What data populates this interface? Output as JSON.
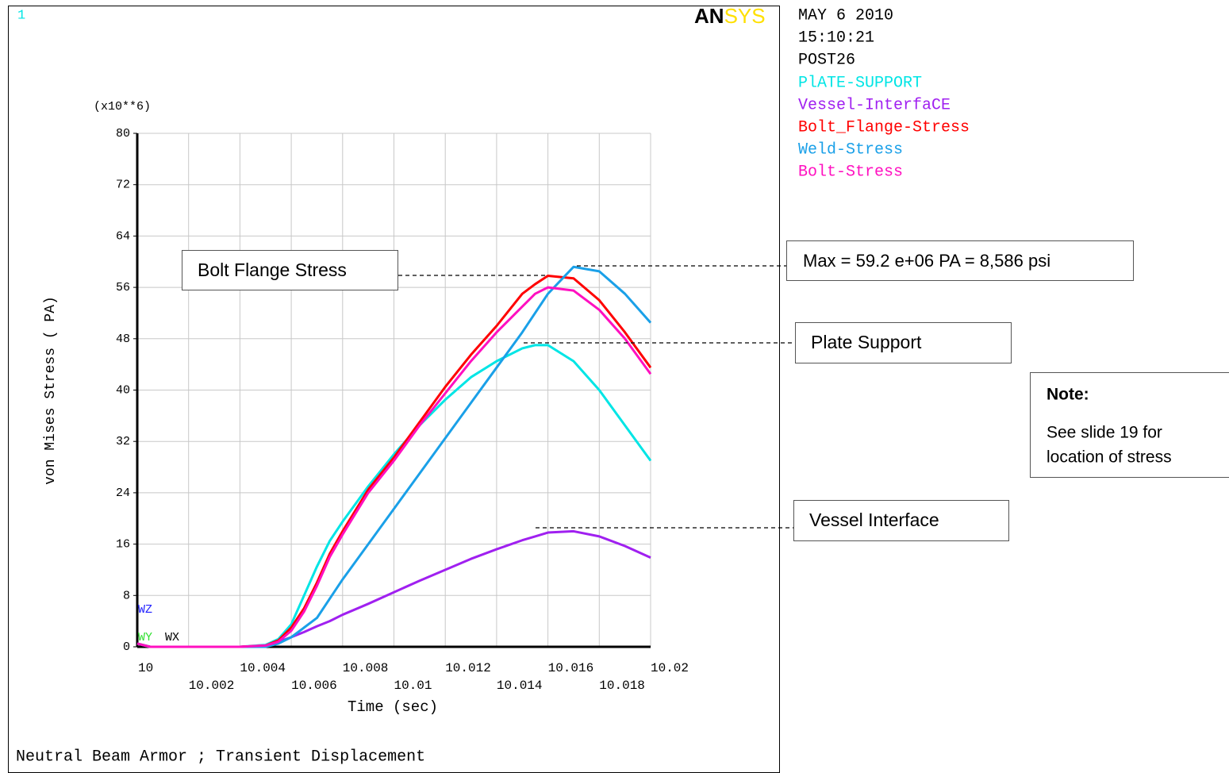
{
  "chart_data": {
    "type": "line",
    "window_number": "1",
    "logo": [
      "AN",
      "SYS"
    ],
    "date_lines": [
      "MAY  6 2010",
      "15:10:21",
      "POST26"
    ],
    "y_multiplier": "(x10**6)",
    "ylabel": "von Mises Stress ( PA)",
    "xlabel": "Time (sec)",
    "caption": "Neutral Beam Armor ; Transient  Displacement",
    "triad": [
      "WZ",
      "WY",
      "WX"
    ],
    "xlim": [
      10,
      10.02
    ],
    "ylim": [
      0,
      80
    ],
    "xticks": [
      10,
      10.002,
      10.004,
      10.006,
      10.008,
      10.01,
      10.012,
      10.014,
      10.016,
      10.018,
      10.02
    ],
    "yticks": [
      0,
      8,
      16,
      24,
      32,
      40,
      48,
      56,
      64,
      72,
      80
    ],
    "grid": true,
    "x": [
      10,
      10.0005,
      10.001,
      10.002,
      10.003,
      10.004,
      10.005,
      10.0055,
      10.006,
      10.0065,
      10.007,
      10.0075,
      10.008,
      10.009,
      10.01,
      10.011,
      10.012,
      10.013,
      10.014,
      10.015,
      10.0155,
      10.016,
      10.017,
      10.018,
      10.019,
      10.02
    ],
    "series": [
      {
        "name": "PlATE-SUPPORT",
        "color": "#00e5e5",
        "values": [
          0.5,
          0,
          0,
          0,
          0,
          0,
          0.3,
          1.2,
          3.5,
          8,
          12.5,
          16.5,
          19.5,
          25,
          30,
          34.5,
          38.5,
          42,
          44.5,
          46.5,
          47,
          47,
          44.5,
          40,
          34.5,
          29
        ]
      },
      {
        "name": "Vessel-InterfaCE",
        "color": "#a020f0",
        "values": [
          0.5,
          0,
          0,
          0,
          0,
          0,
          0.2,
          0.8,
          1.5,
          2.3,
          3.2,
          4,
          5,
          6.7,
          8.5,
          10.3,
          12,
          13.7,
          15.2,
          16.6,
          17.2,
          17.8,
          18,
          17.2,
          15.7,
          13.9
        ]
      },
      {
        "name": "Bolt_Flange-Stress",
        "color": "#ff0000",
        "values": [
          0.5,
          0,
          0,
          0,
          0,
          0,
          0.2,
          1,
          3,
          6,
          10,
          14.5,
          18,
          24.5,
          29.5,
          35,
          40.5,
          45.5,
          50,
          55,
          56.5,
          57.8,
          57.4,
          54,
          49,
          43.5
        ]
      },
      {
        "name": "Weld-Stress",
        "color": "#1aa0e8",
        "values": [
          0.5,
          0,
          0,
          0,
          0,
          0,
          0,
          0.5,
          1.5,
          3,
          4.5,
          7.5,
          10.5,
          16,
          21.5,
          27,
          32.5,
          38,
          43.5,
          49,
          52,
          55,
          59.2,
          58.5,
          55,
          50.5
        ]
      },
      {
        "name": "Bolt-Stress",
        "color": "#ff10c0",
        "values": [
          0.5,
          0,
          0,
          0,
          0,
          0,
          0.2,
          0.8,
          2.5,
          5.5,
          9.5,
          14,
          17.5,
          24,
          29,
          34.5,
          39.5,
          44.5,
          49,
          53,
          55,
          56,
          55.5,
          52.5,
          48,
          42.5
        ]
      }
    ],
    "annotations": [
      "Bolt Flange Stress",
      "Max = 59.2 e+06 PA = 8,586 psi",
      "Plate Support",
      "Vessel Interface"
    ],
    "note": {
      "title": "Note:",
      "lines": [
        "See slide 19 for",
        "location of stress"
      ]
    }
  }
}
